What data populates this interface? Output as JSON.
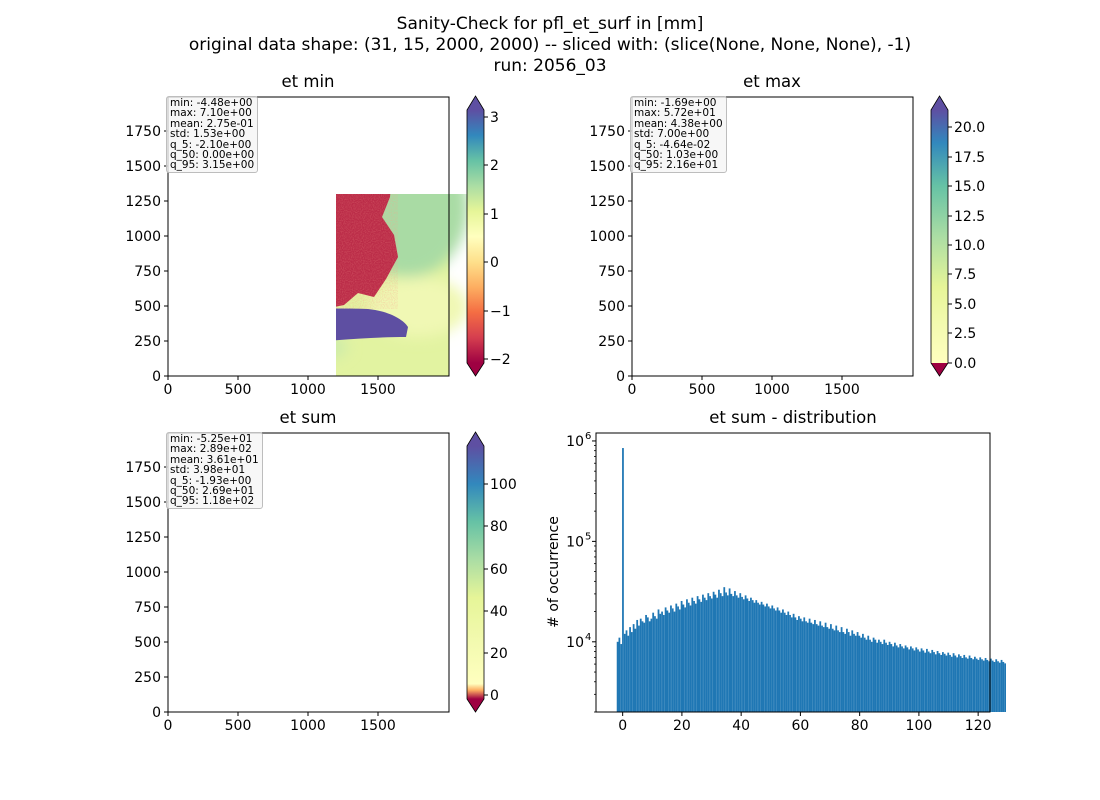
{
  "figure": {
    "title_lines": [
      "Sanity-Check for pfl_et_surf in [mm]",
      "original data shape: (31, 15, 2000, 2000) -- sliced with: (slice(None, None, None), -1)",
      "run: 2056_03"
    ]
  },
  "panels": {
    "et_min": {
      "title": "et min",
      "stats": [
        "min: -4.48e+00",
        "max: 7.10e+00",
        "mean: 2.75e-01",
        "std: 1.53e+00",
        "q_5: -2.10e+00",
        "q_50: 0.00e+00",
        "q_95: 3.15e+00"
      ],
      "colorbar_ticks": [
        "3",
        "2",
        "1",
        "0",
        "−1",
        "−2"
      ]
    },
    "et_max": {
      "title": "et max",
      "stats": [
        "min: -1.69e+00",
        "max: 5.72e+01",
        "mean: 4.38e+00",
        "std: 7.00e+00",
        "q_5: -4.64e-02",
        "q_50: 1.03e+00",
        "q_95: 2.16e+01"
      ],
      "colorbar_ticks": [
        "20.0",
        "17.5",
        "15.0",
        "12.5",
        "10.0",
        "7.5",
        "5.0",
        "2.5",
        "0.0"
      ]
    },
    "et_sum": {
      "title": "et sum",
      "stats": [
        "min: -5.25e+01",
        "max: 2.89e+02",
        "mean: 3.61e+01",
        "std: 3.98e+01",
        "q_5: -1.93e+00",
        "q_50: 2.69e+01",
        "q_95: 1.18e+02"
      ],
      "colorbar_ticks": [
        "100",
        "80",
        "60",
        "40",
        "20",
        "0"
      ]
    },
    "et_sum_distribution": {
      "title": "et sum - distribution",
      "ylabel": "# of occurrence"
    }
  },
  "map_axes": {
    "x_ticks": [
      "0",
      "500",
      "1000",
      "1500"
    ],
    "y_ticks": [
      "1750",
      "1500",
      "1250",
      "1000",
      "750",
      "500",
      "250",
      "0"
    ]
  },
  "colors": {
    "hist_bar": "#1f77b4",
    "cmap_spectral": [
      "#9e0142",
      "#d53e4f",
      "#f46d43",
      "#fdae61",
      "#fee08b",
      "#ffffbf",
      "#e6f598",
      "#abdda4",
      "#66c2a5",
      "#3288bd",
      "#5e4fa2"
    ]
  },
  "chart_data": [
    {
      "type": "heatmap",
      "title": "et min",
      "xlim": [
        0,
        2000
      ],
      "ylim": [
        0,
        2000
      ],
      "x_ticks": [
        0,
        500,
        1000,
        1500
      ],
      "y_ticks": [
        0,
        250,
        500,
        750,
        1000,
        1250,
        1500,
        1750
      ],
      "colorbar": {
        "range": [
          -2.3,
          3.3
        ],
        "ticks": [
          -2,
          -1,
          0,
          1,
          2,
          3
        ],
        "extend": "both",
        "cmap": "Spectral"
      }
    },
    {
      "type": "heatmap",
      "title": "et max",
      "xlim": [
        0,
        2000
      ],
      "ylim": [
        0,
        2000
      ],
      "x_ticks": [
        0,
        500,
        1000,
        1500
      ],
      "y_ticks": [
        0,
        250,
        500,
        750,
        1000,
        1250,
        1500,
        1750
      ],
      "colorbar": {
        "range": [
          0,
          22
        ],
        "ticks": [
          0,
          2.5,
          5,
          7.5,
          10,
          12.5,
          15,
          17.5,
          20
        ],
        "extend": "both",
        "cmap": "Spectral"
      }
    },
    {
      "type": "heatmap",
      "title": "et sum",
      "xlim": [
        0,
        2000
      ],
      "ylim": [
        0,
        2000
      ],
      "x_ticks": [
        0,
        500,
        1000,
        1500
      ],
      "y_ticks": [
        0,
        250,
        500,
        750,
        1000,
        1250,
        1500,
        1750
      ],
      "colorbar": {
        "range": [
          -6,
          120
        ],
        "ticks": [
          0,
          20,
          40,
          60,
          80,
          100
        ],
        "extend": "both",
        "cmap": "Spectral"
      }
    },
    {
      "type": "bar",
      "title": "et sum - distribution",
      "ylabel": "# of occurrence",
      "yscale": "log",
      "xlim": [
        -9,
        124
      ],
      "ylim": [
        2000,
        1200000
      ],
      "x_ticks": [
        0,
        20,
        40,
        60,
        80,
        100,
        120
      ],
      "y_ticks": [
        10000,
        100000,
        1000000
      ],
      "y_tick_labels": [
        [
          "10",
          "4"
        ],
        [
          "10",
          "5"
        ],
        [
          "10",
          "6"
        ]
      ],
      "bins": {
        "start": -2,
        "width": 0.6
      },
      "counts": [
        10000,
        11000,
        9500,
        850000,
        12000,
        13000,
        11500,
        14000,
        12500,
        15000,
        13500,
        16500,
        14500,
        17000,
        16000,
        15500,
        18500,
        17500,
        16000,
        17000,
        19500,
        18000,
        17000,
        21000,
        19000,
        20000,
        18500,
        22000,
        20500,
        19500,
        23000,
        21500,
        20000,
        24000,
        22500,
        21000,
        25500,
        23500,
        22000,
        26500,
        24500,
        23000,
        27500,
        25500,
        24000,
        28500,
        26500,
        25000,
        29500,
        27500,
        26000,
        30500,
        28500,
        27000,
        31500,
        29500,
        27500,
        33000,
        30500,
        28500,
        35000,
        31000,
        29000,
        34000,
        30000,
        28500,
        32000,
        29000,
        27500,
        30500,
        28000,
        26500,
        29000,
        27000,
        25500,
        27500,
        26000,
        24500,
        26000,
        24500,
        23500,
        25000,
        23500,
        22500,
        24000,
        22500,
        21500,
        23000,
        21500,
        20500,
        22000,
        20500,
        19500,
        21000,
        19500,
        18500,
        20000,
        18500,
        17500,
        19000,
        17500,
        16500,
        18000,
        17000,
        16000,
        17500,
        16000,
        15500,
        17000,
        15500,
        15000,
        16500,
        15000,
        14500,
        16000,
        14500,
        14000,
        15500,
        14000,
        13500,
        15000,
        13500,
        13000,
        14500,
        13000,
        12500,
        14000,
        12500,
        12000,
        13500,
        12500,
        11500,
        13000,
        12000,
        11500,
        12500,
        11500,
        11000,
        12000,
        11000,
        10500,
        11500,
        10500,
        10000,
        11000,
        10500,
        9800,
        10500,
        10000,
        9500,
        10500,
        9800,
        9300,
        10000,
        9500,
        9000,
        9800,
        9200,
        8800,
        9500,
        9000,
        8600,
        9200,
        8800,
        8400,
        9000,
        8600,
        8200,
        8800,
        8400,
        8000,
        8600,
        8200,
        7800,
        8500,
        8000,
        7700,
        8300,
        7900,
        7500,
        8100,
        7700,
        7400,
        7900,
        7600,
        7300,
        7800,
        7400,
        7100,
        7700,
        7300,
        7000,
        7500,
        7200,
        6900,
        7400,
        7000,
        6800,
        7300,
        6900,
        6700,
        7100,
        6800,
        6600,
        7000,
        6700,
        6500,
        6900,
        6600,
        6400,
        6800,
        6500,
        6300,
        6700,
        6400,
        6200,
        6600,
        6300,
        6100
      ]
    }
  ]
}
